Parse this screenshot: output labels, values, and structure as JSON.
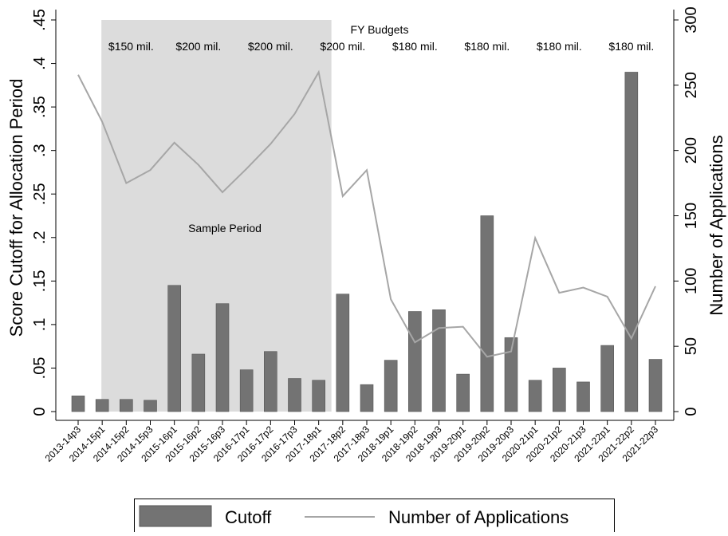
{
  "chart_data": {
    "type": "bar_line",
    "categories": [
      "2013-14p3",
      "2014-15p1",
      "2014-15p2",
      "2014-15p3",
      "2015-16p1",
      "2015-16p2",
      "2015-16p3",
      "2016-17p1",
      "2016-17p2",
      "2016-17p3",
      "2017-18p1",
      "2017-18p2",
      "2017-18p3",
      "2018-19p1",
      "2018-19p2",
      "2018-19p3",
      "2019-20p1",
      "2019-20p2",
      "2019-20p3",
      "2020-21p1",
      "2020-21p2",
      "2020-21p3",
      "2021-22p1",
      "2021-22p2",
      "2021-22p3"
    ],
    "series": [
      {
        "name": "Cutoff",
        "type": "bar",
        "color": "#737373",
        "values": [
          0.018,
          0.014,
          0.014,
          0.013,
          0.145,
          0.066,
          0.124,
          0.048,
          0.069,
          0.038,
          0.036,
          0.135,
          0.031,
          0.059,
          0.115,
          0.117,
          0.043,
          0.225,
          0.085,
          0.036,
          0.05,
          0.034,
          0.076,
          0.39,
          0.06
        ]
      },
      {
        "name": "Number of Applications",
        "type": "line",
        "axis": "y2",
        "color": "#a6a6a6",
        "values": [
          258,
          222,
          175,
          185,
          206,
          189,
          168,
          186,
          205,
          228,
          260,
          165,
          185,
          86,
          53,
          64,
          65,
          42,
          46,
          133,
          91,
          95,
          88,
          56,
          96
        ]
      }
    ],
    "ylabel": "Score Cutoff for Allocation Period",
    "y2label": "Number of Applications",
    "ylim": [
      0,
      0.45
    ],
    "yticks": [
      {
        "value": 0,
        "label": "0"
      },
      {
        "value": 0.05,
        "label": ".05"
      },
      {
        "value": 0.1,
        "label": ".1"
      },
      {
        "value": 0.15,
        "label": ".15"
      },
      {
        "value": 0.2,
        "label": ".2"
      },
      {
        "value": 0.25,
        "label": ".25"
      },
      {
        "value": 0.3,
        "label": ".3"
      },
      {
        "value": 0.35,
        "label": ".35"
      },
      {
        "value": 0.4,
        "label": ".4"
      },
      {
        "value": 0.45,
        "label": ".45"
      }
    ],
    "y2lim": [
      0,
      300
    ],
    "y2ticks": [
      0,
      50,
      100,
      150,
      200,
      250,
      300
    ],
    "annotations": {
      "budget_title": "FY Budgets",
      "budgets": [
        "$150 mil.",
        "$200 mil.",
        "$200 mil.",
        "$200 mil.",
        "$180 mil.",
        "$180 mil.",
        "$180 mil.",
        "$180 mil."
      ],
      "sample": "Sample Period"
    },
    "legend": "bottom"
  }
}
